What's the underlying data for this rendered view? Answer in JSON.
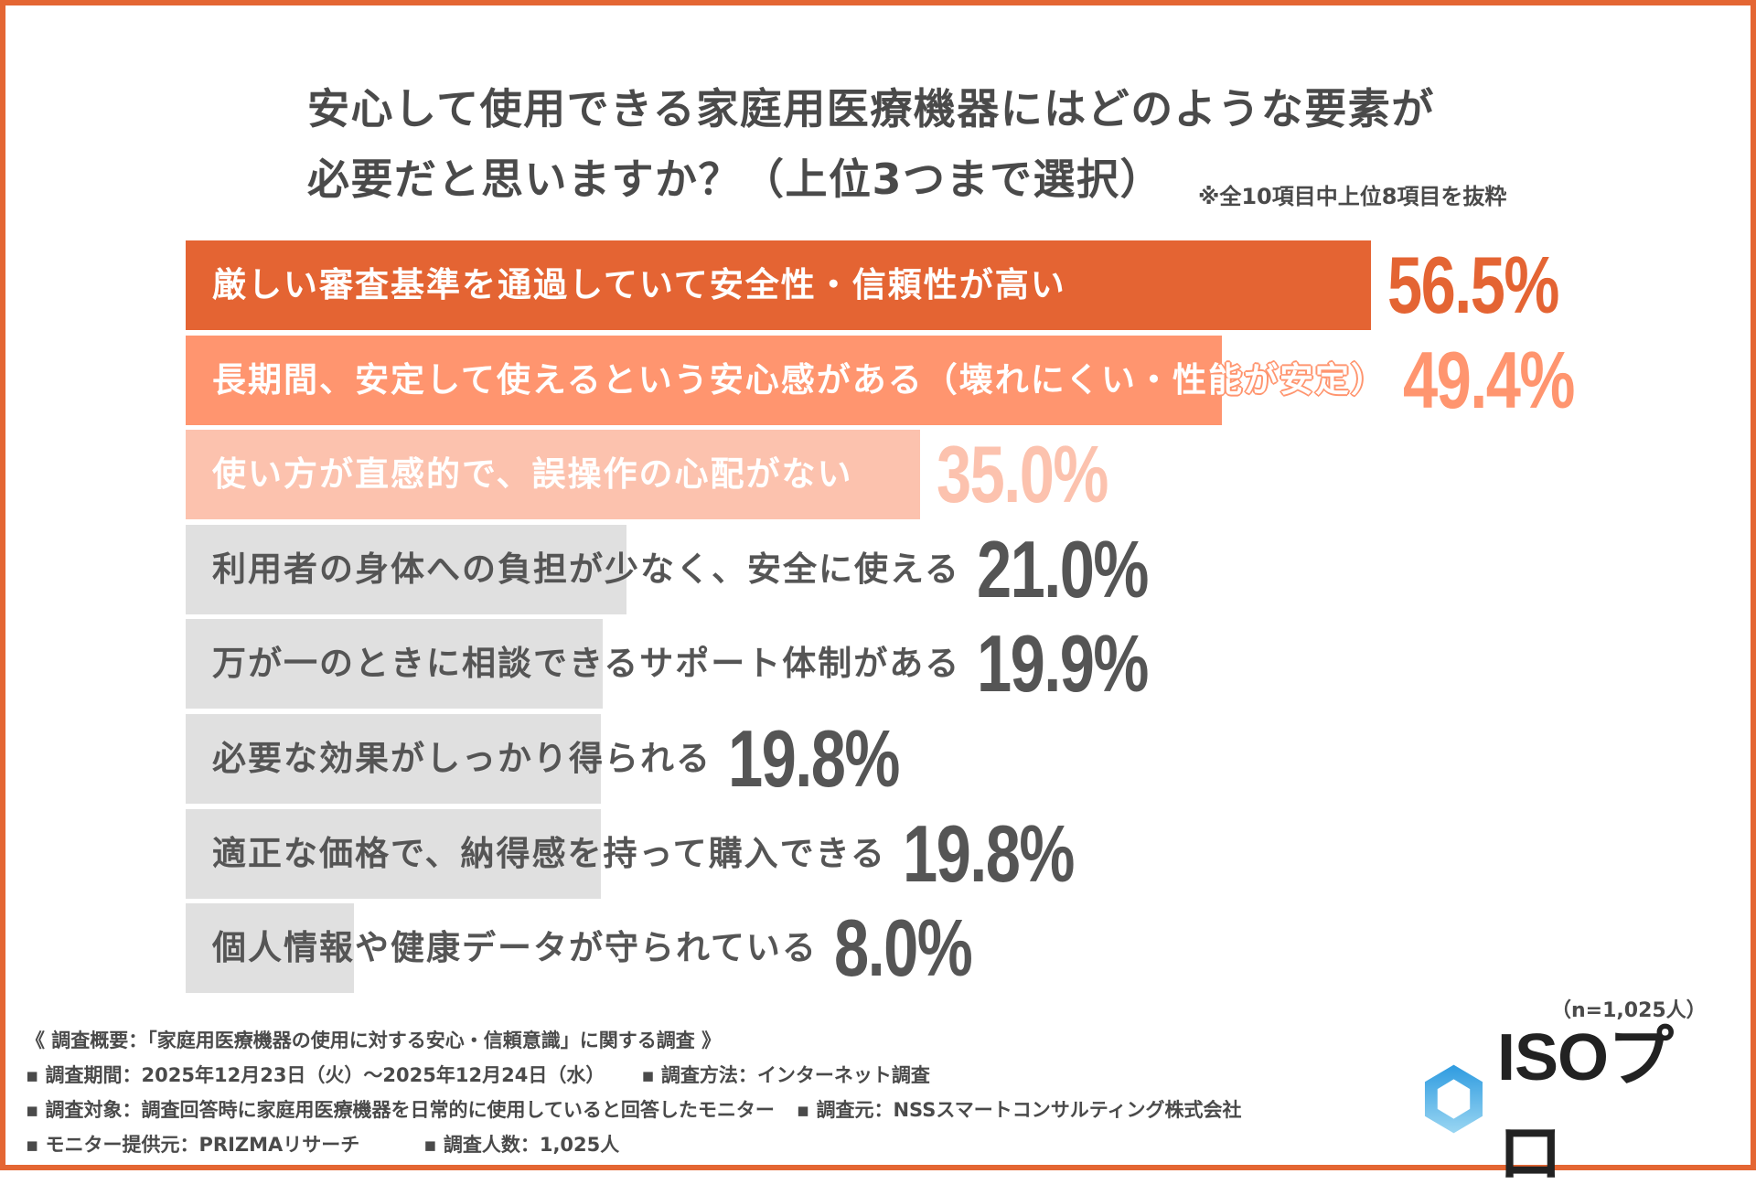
{
  "title": {
    "line1": "安心して使用できる家庭用医療機器にはどのような要素が",
    "line2": "必要だと思いますか？（上位3つまで選択）",
    "note": "※全10項目中上位8項目を抜粋"
  },
  "chart_data": {
    "type": "bar",
    "orientation": "horizontal",
    "unit": "%",
    "xlim": [
      0,
      56.5
    ],
    "grid": false,
    "categories": [
      "厳しい審査基準を通過していて安全性・信頼性が高い",
      "長期間、安定して使えるという安心感がある（壊れにくい・性能が安定）",
      "使い方が直感的で、誤操作の心配がない",
      "利用者の身体への負担が少なく、安全に使える",
      "万が一のときに相談できるサポート体制がある",
      "必要な効果がしっかり得られる",
      "適正な価格で、納得感を持って購入できる",
      "個人情報や健康データが守られている"
    ],
    "values": [
      56.5,
      49.4,
      35.0,
      21.0,
      19.9,
      19.8,
      19.8,
      8.0
    ],
    "value_labels": [
      "56.5%",
      "49.4%",
      "35.0%",
      "21.0%",
      "19.9%",
      "19.8%",
      "19.8%",
      "8.0%"
    ],
    "bar_colors": [
      "#E46433",
      "#FF956F",
      "#FCC2AE",
      "#E0E0E0",
      "#E0E0E0",
      "#E0E0E0",
      "#E0E0E0",
      "#E0E0E0"
    ],
    "label_colors": [
      "#FFFFFF",
      "#FFFFFF",
      "#FFFFFF",
      "#555555",
      "#555555",
      "#555555",
      "#555555",
      "#555555"
    ],
    "value_colors": [
      "#E46433",
      "#FF956F",
      "#FCC2AE",
      "#555555",
      "#555555",
      "#555555",
      "#555555",
      "#555555"
    ]
  },
  "sample": "（n=1,025人）",
  "footer": {
    "heading": "《 調査概要：「家庭用医療機器の使用に対する安心・信頼意識」に関する調査 》",
    "period": "▪ 調査期間：2025年12月23日（火）～2025年12月24日（水）",
    "method": "▪ 調査方法：インターネット調査",
    "target": "▪ 調査対象：調査回答時に家庭用医療機器を日常的に使用していると回答したモニター",
    "source": "▪ 調査元：NSSスマートコンサルティング株式会社",
    "provider": "▪ モニター提供元：PRIZMAリサーチ",
    "count": "▪ 調査人数：1,025人"
  },
  "logo": {
    "text": "ISOプロ",
    "icon": "hexagon-icon",
    "color": "#3AA6E0"
  },
  "colors": {
    "border": "#E46633",
    "text": "#4A4A4A"
  }
}
